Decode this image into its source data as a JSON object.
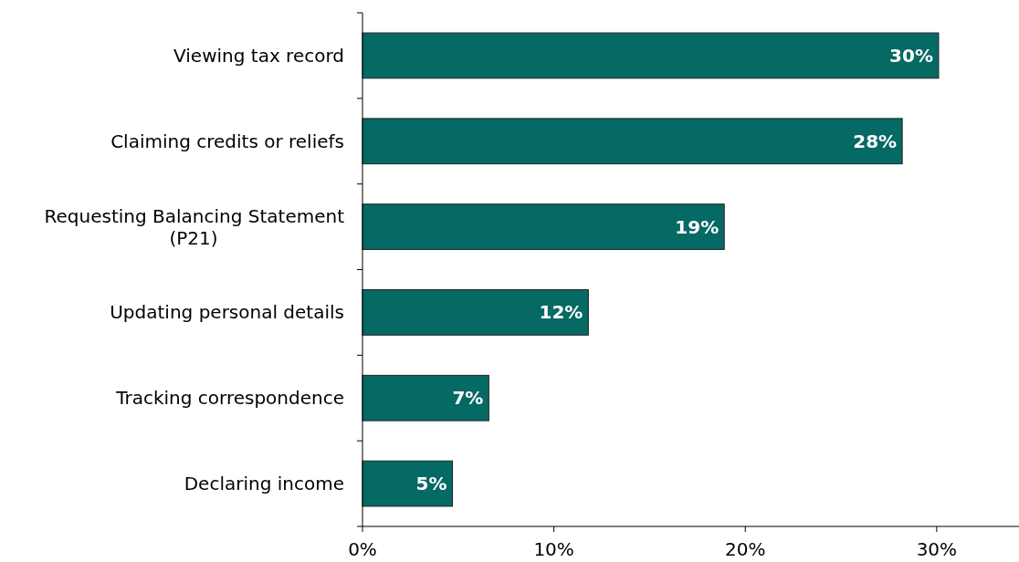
{
  "chart_data": {
    "type": "bar",
    "orientation": "horizontal",
    "categories": [
      "Viewing tax record",
      "Claiming credits or reliefs",
      "Requesting Balancing Statement (P21)",
      "Updating personal details",
      "Tracking correspondence",
      "Declaring income"
    ],
    "values": [
      30.1,
      28.2,
      18.9,
      11.8,
      6.6,
      4.7
    ],
    "value_labels": [
      "30%",
      "28%",
      "19%",
      "12%",
      "7%",
      "5%"
    ],
    "color": "#056964",
    "xlim": [
      0,
      34.3
    ],
    "xticks": [
      {
        "value": 0,
        "label": "0%"
      },
      {
        "value": 10,
        "label": "10%"
      },
      {
        "value": 20,
        "label": "20%"
      },
      {
        "value": 30,
        "label": "30%"
      }
    ]
  }
}
